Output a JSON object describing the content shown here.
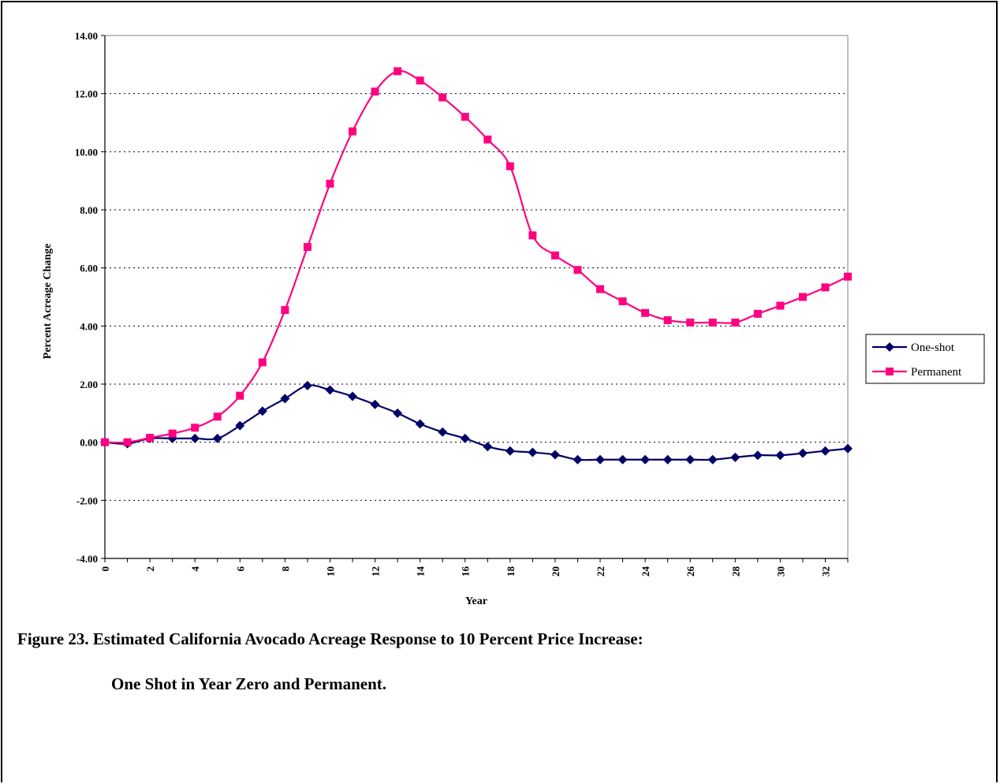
{
  "caption": {
    "line1": "Figure 23.  Estimated California Avocado Acreage Response to 10 Percent Price Increase:",
    "line2": "One Shot in Year Zero and Permanent."
  },
  "chart_data": {
    "type": "line",
    "xlabel": "Year",
    "ylabel": "Percent Acreage Change",
    "ylim": [
      -4,
      14
    ],
    "xlim": [
      0,
      33
    ],
    "yticks": [
      "14.00",
      "12.00",
      "10.00",
      "8.00",
      "6.00",
      "4.00",
      "2.00",
      "0.00",
      "-2.00",
      "-4.00"
    ],
    "xticks": [
      "0",
      "2",
      "4",
      "6",
      "8",
      "10",
      "12",
      "14",
      "16",
      "18",
      "20",
      "22",
      "24",
      "26",
      "28",
      "30",
      "32"
    ],
    "grid": "horizontal dotted",
    "legend_position": "right",
    "x": [
      0,
      1,
      2,
      3,
      4,
      5,
      6,
      7,
      8,
      9,
      10,
      11,
      12,
      13,
      14,
      15,
      16,
      17,
      18,
      19,
      20,
      21,
      22,
      23,
      24,
      25,
      26,
      27,
      28,
      29,
      30,
      31,
      32,
      33
    ],
    "series": [
      {
        "name": "One-shot",
        "color": "#000066",
        "marker": "diamond",
        "values": [
          0.0,
          -0.05,
          0.13,
          0.13,
          0.13,
          0.13,
          0.57,
          1.07,
          1.5,
          1.95,
          1.8,
          1.58,
          1.3,
          1.0,
          0.63,
          0.35,
          0.13,
          -0.15,
          -0.3,
          -0.35,
          -0.43,
          -0.6,
          -0.6,
          -0.6,
          -0.6,
          -0.6,
          -0.6,
          -0.6,
          -0.52,
          -0.45,
          -0.45,
          -0.38,
          -0.3,
          -0.22
        ]
      },
      {
        "name": "Permanent",
        "color": "#ff0080",
        "marker": "square",
        "values": [
          0.0,
          0.0,
          0.15,
          0.3,
          0.5,
          0.88,
          1.6,
          2.75,
          4.55,
          6.72,
          8.9,
          10.7,
          12.07,
          12.77,
          12.45,
          11.87,
          11.2,
          10.42,
          9.5,
          7.12,
          6.43,
          5.93,
          5.27,
          4.85,
          4.45,
          4.2,
          4.12,
          4.12,
          4.12,
          4.42,
          4.7,
          5.0,
          5.33,
          5.7
        ]
      }
    ]
  }
}
